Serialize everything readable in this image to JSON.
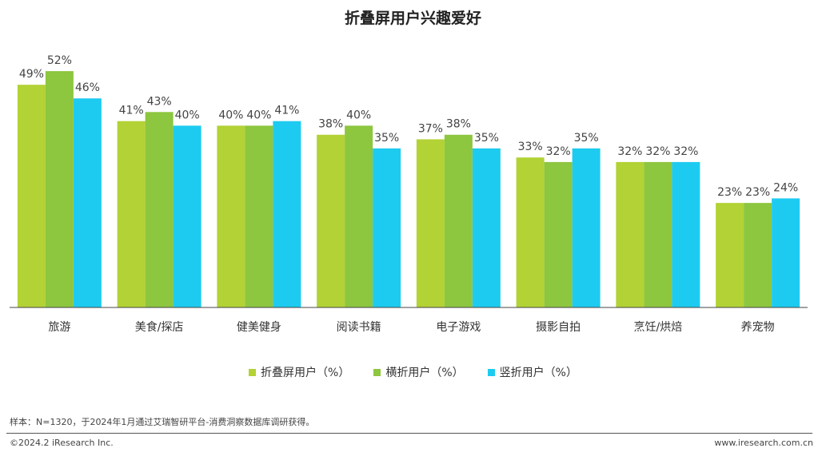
{
  "chart_data": {
    "type": "bar",
    "title": "折叠屏用户兴趣爱好",
    "categories": [
      "旅游",
      "美食/探店",
      "健美健身",
      "阅读书籍",
      "电子游戏",
      "摄影自拍",
      "烹饪/烘焙",
      "养宠物"
    ],
    "series": [
      {
        "name": "折叠屏用户（%）",
        "color": "#B2D235",
        "values": [
          49,
          41,
          40,
          38,
          37,
          33,
          32,
          23
        ]
      },
      {
        "name": "横折用户（%）",
        "color": "#8DC63F",
        "values": [
          52,
          43,
          40,
          40,
          38,
          32,
          32,
          23
        ]
      },
      {
        "name": "竖折用户（%）",
        "color": "#1ECBF0",
        "values": [
          46,
          40,
          41,
          35,
          35,
          35,
          32,
          24
        ]
      }
    ],
    "ylim": [
      0,
      55
    ],
    "value_suffix": "%",
    "xlabel": "",
    "ylabel": "",
    "legend_position": "bottom"
  },
  "footer": {
    "note": "样本：N=1320，于2024年1月通过艾瑞智研平台-消费洞察数据库调研获得。",
    "copyright": "©2024.2 iResearch Inc.",
    "website": "www.iresearch.com.cn"
  }
}
